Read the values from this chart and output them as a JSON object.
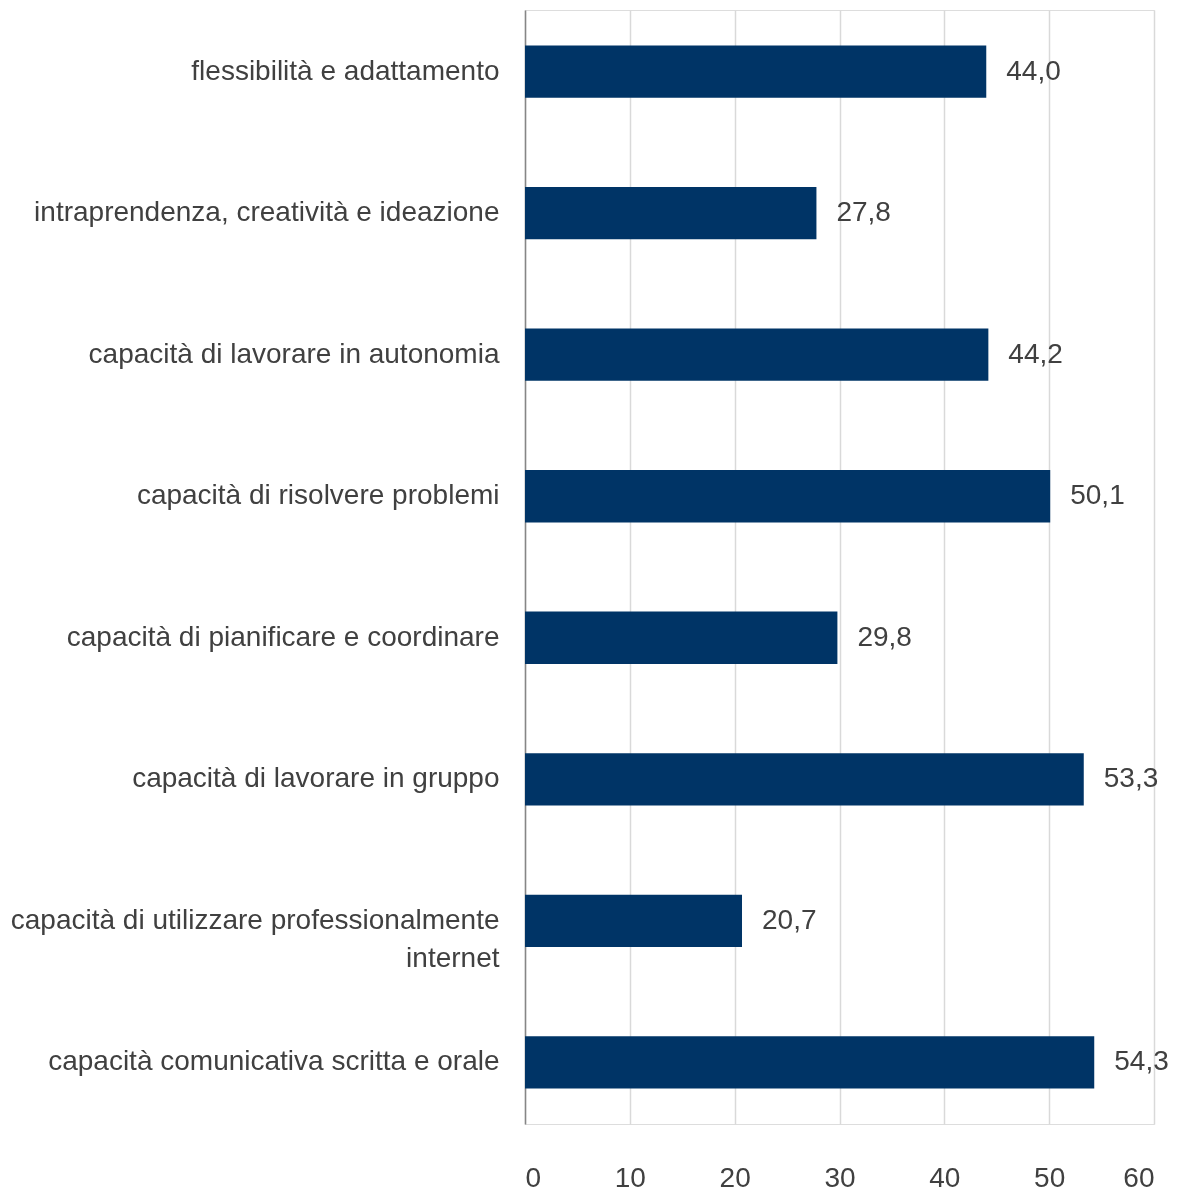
{
  "chart_data": {
    "type": "bar",
    "orientation": "horizontal",
    "categories": [
      "flessibilità e adattamento",
      "intraprendenza, creatività e ideazione",
      "capacità di lavorare in autonomia",
      "capacità di risolvere problemi",
      "capacità di pianificare e coordinare",
      "capacità di lavorare in gruppo",
      "capacità di utilizzare professionalmente internet",
      "capacità comunicativa scritta e orale"
    ],
    "values": [
      44.0,
      27.8,
      44.2,
      50.1,
      29.8,
      53.3,
      20.7,
      54.3
    ],
    "value_labels": [
      "44,0",
      "27,8",
      "44,2",
      "50,1",
      "29,8",
      "53,3",
      "20,7",
      "54,3"
    ],
    "color": "#003466",
    "xlim": [
      0,
      60
    ],
    "xticks": [
      0,
      10,
      20,
      30,
      40,
      50,
      60
    ],
    "grid": "x"
  }
}
